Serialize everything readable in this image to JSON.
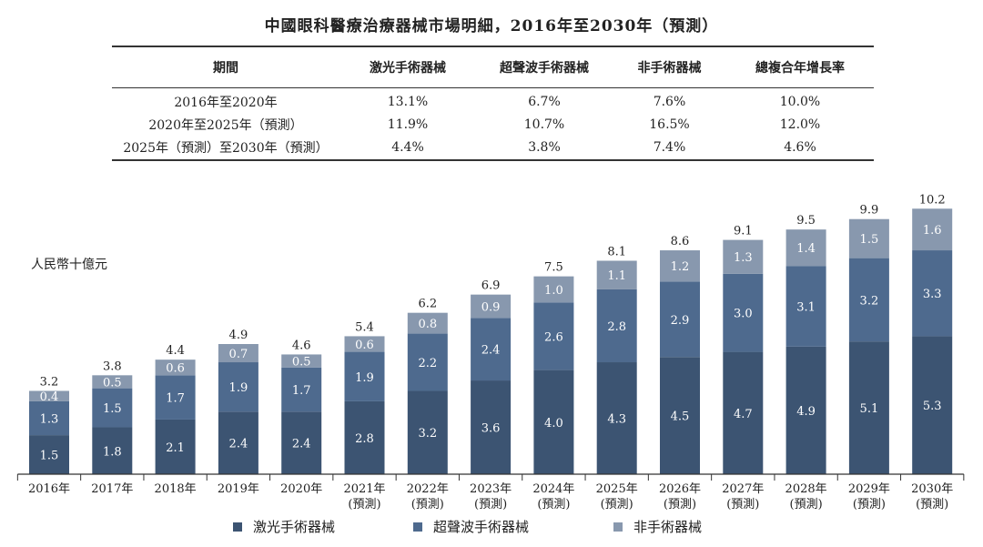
{
  "title": "中國眼科醫療治療器械市場明細，2016年至2030年（預測）",
  "table": {
    "headers": [
      "期間",
      "激光手術器械",
      "超聲波手術器械",
      "非手術器械",
      "總複合年增長率"
    ],
    "rows": [
      [
        "2016年至2020年",
        "13.1%",
        "6.7%",
        "7.6%",
        "10.0%"
      ],
      [
        "2020年至2025年（預測）",
        "11.9%",
        "10.7%",
        "16.5%",
        "12.0%"
      ],
      [
        "2025年（預測）至2030年（預測）",
        "4.4%",
        "3.8%",
        "7.4%",
        "4.6%"
      ]
    ]
  },
  "unit_label": "人民幣十億元",
  "forecast_label": "(預測)",
  "legend": [
    {
      "label": "激光手術器械",
      "color": "#3c5472"
    },
    {
      "label": "超聲波手術器械",
      "color": "#4e6a8e"
    },
    {
      "label": "非手術器械",
      "color": "#8898ae"
    }
  ],
  "chart_data": {
    "type": "bar",
    "stacked": true,
    "title": "中國眼科醫療治療器械市場明細，2016年至2030年（預測）",
    "ylabel": "人民幣十億元",
    "ylim": [
      0,
      10.2
    ],
    "categories": [
      "2016年",
      "2017年",
      "2018年",
      "2019年",
      "2020年",
      "2021年",
      "2022年",
      "2023年",
      "2024年",
      "2025年",
      "2026年",
      "2027年",
      "2028年",
      "2029年",
      "2030年"
    ],
    "forecast_flags": [
      false,
      false,
      false,
      false,
      false,
      true,
      true,
      true,
      true,
      true,
      true,
      true,
      true,
      true,
      true
    ],
    "series": [
      {
        "name": "激光手術器械",
        "color": "#3c5472",
        "values": [
          1.5,
          1.8,
          2.1,
          2.4,
          2.4,
          2.8,
          3.2,
          3.6,
          4.0,
          4.3,
          4.5,
          4.7,
          4.9,
          5.1,
          5.3
        ]
      },
      {
        "name": "超聲波手術器械",
        "color": "#4e6a8e",
        "values": [
          1.3,
          1.5,
          1.7,
          1.9,
          1.7,
          1.9,
          2.2,
          2.4,
          2.6,
          2.8,
          2.9,
          3.0,
          3.1,
          3.2,
          3.3
        ]
      },
      {
        "name": "非手術器械",
        "color": "#8898ae",
        "values": [
          0.4,
          0.5,
          0.6,
          0.7,
          0.5,
          0.6,
          0.8,
          0.9,
          1.0,
          1.1,
          1.2,
          1.3,
          1.4,
          1.5,
          1.6
        ]
      }
    ],
    "totals": [
      3.2,
      3.8,
      4.4,
      4.9,
      4.6,
      5.4,
      6.2,
      6.9,
      7.5,
      8.1,
      8.6,
      9.1,
      9.5,
      9.9,
      10.2
    ]
  }
}
